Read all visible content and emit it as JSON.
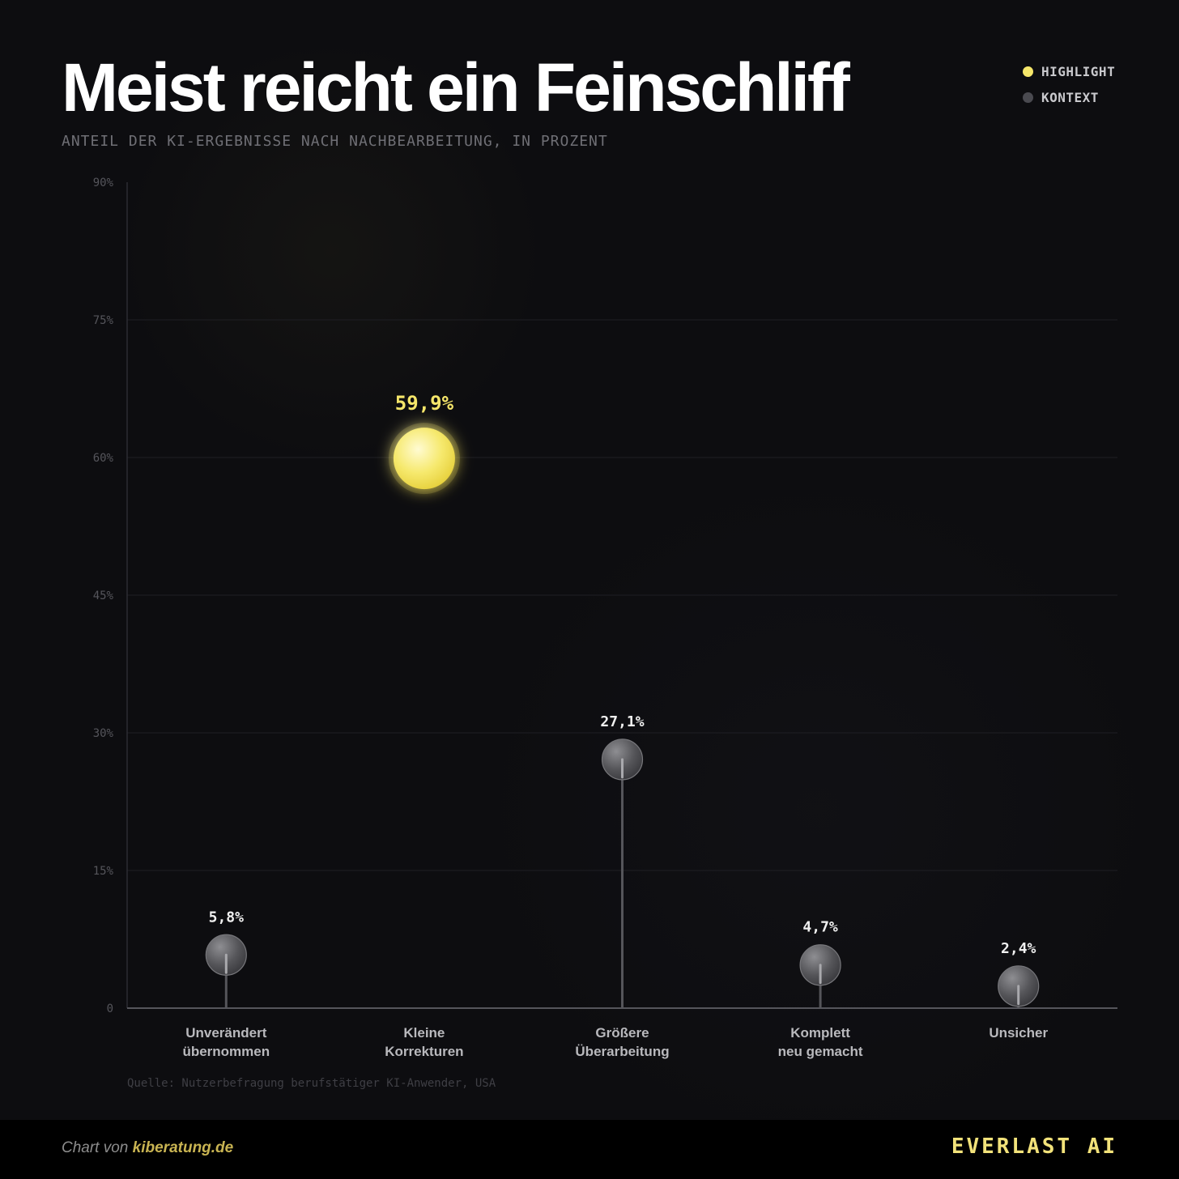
{
  "header": {
    "title": "Meist reicht ein Feinschliff",
    "subtitle": "ANTEIL DER KI-ERGEBNISSE NACH NACHBEARBEITUNG, IN PROZENT"
  },
  "legend": [
    {
      "label": "HIGHLIGHT",
      "color": "#f5e66a"
    },
    {
      "label": "KONTEXT",
      "color": "#4a4a50"
    }
  ],
  "chart_data": {
    "type": "lollipop",
    "categories": [
      [
        "Unverändert",
        "übernommen"
      ],
      [
        "Kleine",
        "Korrekturen"
      ],
      [
        "Größere",
        "Überarbeitung"
      ],
      [
        "Komplett",
        "neu gemacht"
      ],
      [
        "Unsicher"
      ]
    ],
    "values": [
      5.8,
      59.9,
      27.1,
      4.7,
      2.4
    ],
    "value_labels": [
      "5,8%",
      "59,9%",
      "27,1%",
      "4,7%",
      "2,4%"
    ],
    "highlight": [
      false,
      true,
      false,
      false,
      false
    ],
    "y_ticks": [
      0,
      15,
      30,
      45,
      60,
      75,
      90
    ],
    "y_tick_labels": [
      "0",
      "15%",
      "30%",
      "45%",
      "60%",
      "75%",
      "90%"
    ],
    "ylim": [
      0,
      90
    ],
    "grid": true,
    "legend_position": "top-right",
    "colors": {
      "highlight": "#f5e66a",
      "context": "#5a5a5e"
    }
  },
  "source": "Quelle: Nutzerbefragung berufstätiger KI-Anwender, USA",
  "footer": {
    "credit_prefix": "Chart von",
    "credit_link": "kiberatung.de",
    "brand": "EVERLAST AI"
  }
}
